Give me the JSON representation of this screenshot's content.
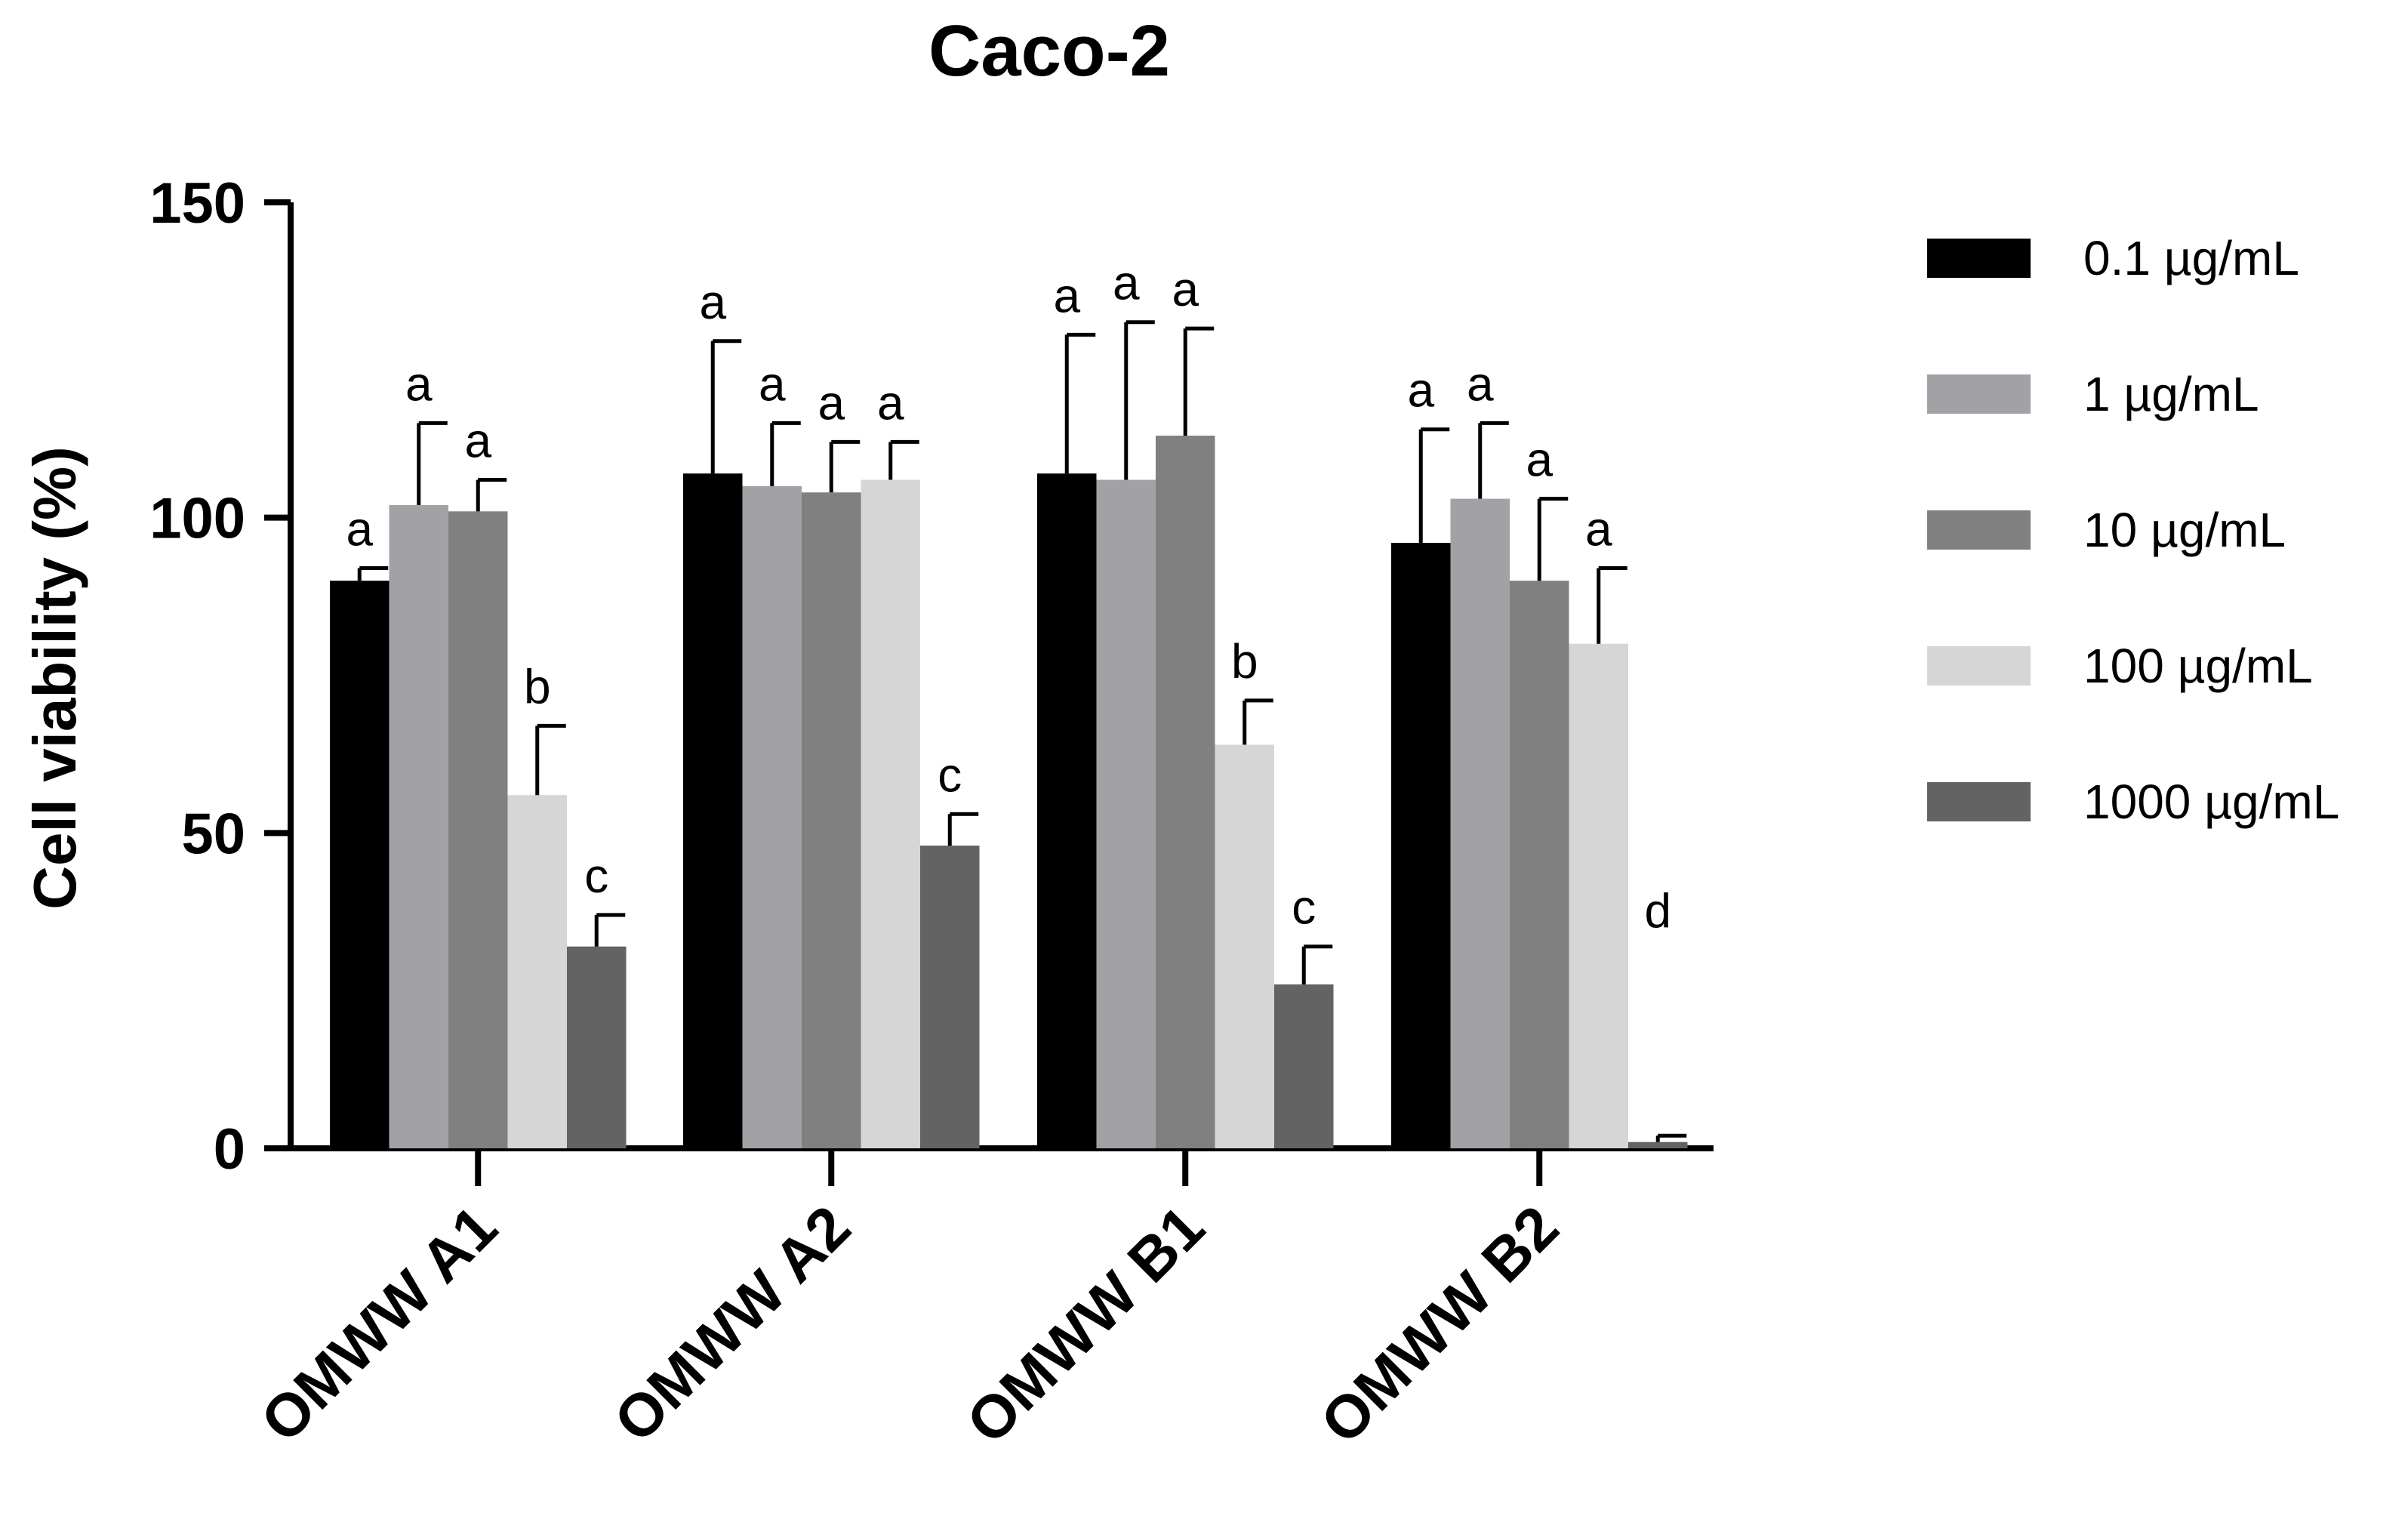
{
  "chart_data": {
    "type": "bar",
    "title": "Caco-2",
    "xlabel": "",
    "ylabel": "Cell viability (%)",
    "ylim": [
      0,
      150
    ],
    "yticks": [
      0,
      50,
      100,
      150
    ],
    "grid": false,
    "legend_position": "right",
    "categories": [
      "OMWW A1",
      "OMWW A2",
      "OMWW B1",
      "OMWW B2"
    ],
    "series": [
      {
        "name": "0.1 µg/mL",
        "color": "#000000",
        "values": [
          90,
          107,
          107,
          96
        ],
        "errors": [
          2,
          21,
          22,
          18
        ],
        "letters": [
          "a",
          "a",
          "a",
          "a"
        ]
      },
      {
        "name": "1 µg/mL",
        "color": "#a2a2a6",
        "values": [
          102,
          105,
          106,
          103
        ],
        "errors": [
          13,
          10,
          25,
          12
        ],
        "letters": [
          "a",
          "a",
          "a",
          "a"
        ]
      },
      {
        "name": "10 µg/mL",
        "color": "#808080",
        "values": [
          101,
          104,
          113,
          90
        ],
        "errors": [
          5,
          8,
          17,
          13
        ],
        "letters": [
          "a",
          "a",
          "a",
          "a"
        ]
      },
      {
        "name": "100 µg/mL",
        "color": "#d6d6d6",
        "values": [
          56,
          106,
          64,
          80
        ],
        "errors": [
          11,
          6,
          7,
          12
        ],
        "letters": [
          "b",
          "a",
          "b",
          "a"
        ]
      },
      {
        "name": "1000 µg/mL",
        "color": "#636363",
        "values": [
          32,
          48,
          26,
          1
        ],
        "errors": [
          5,
          5,
          6,
          1
        ],
        "letters": [
          "c",
          "c",
          "c",
          "d"
        ]
      }
    ]
  }
}
